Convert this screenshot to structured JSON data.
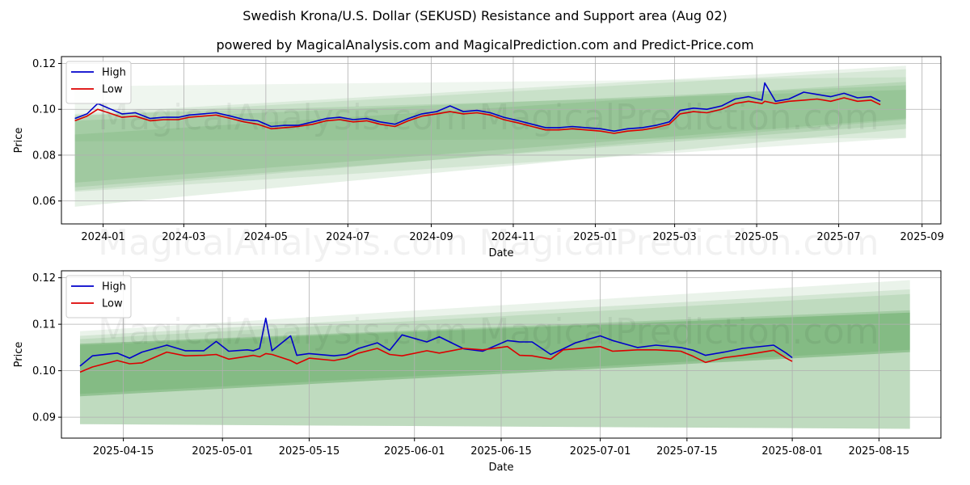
{
  "title": "Swedish Krona/U.S. Dollar (SEKUSD) Resistance and Support area (Aug 02)",
  "subtitle": "powered by MagicalAnalysis.com and MagicalPrediction.com and Predict-Price.com",
  "watermark": [
    "MagicalAnalysis.com",
    "MagicalPrediction.com"
  ],
  "colors": {
    "high": "#0000cc",
    "low": "#dd0000",
    "band": "#2e8b2e",
    "grid": "#b0b0b0"
  },
  "chart_data": [
    {
      "type": "line",
      "xlabel": "Date",
      "ylabel": "Price",
      "xlim": [
        "2023-12-01",
        "2025-09-15"
      ],
      "ylim": [
        0.05,
        0.123
      ],
      "xticks": [
        "2024-01",
        "2024-03",
        "2024-05",
        "2024-07",
        "2024-09",
        "2024-11",
        "2025-01",
        "2025-03",
        "2025-05",
        "2025-07",
        "2025-09"
      ],
      "xtick_dates": [
        "2024-01-01",
        "2024-03-01",
        "2024-05-01",
        "2024-07-01",
        "2024-09-01",
        "2024-11-01",
        "2025-01-01",
        "2025-03-01",
        "2025-05-01",
        "2025-07-01",
        "2025-09-01"
      ],
      "yticks": [
        0.06,
        0.08,
        0.1,
        0.12
      ],
      "ytick_labels": [
        "0.06",
        "0.08",
        "0.10",
        "0.12"
      ],
      "grid": true,
      "legend": "top-left",
      "legend_entries": [
        "High",
        "Low"
      ],
      "series": [
        {
          "name": "High",
          "x": [
            "2023-12-11",
            "2023-12-20",
            "2023-12-28",
            "2024-01-05",
            "2024-01-15",
            "2024-01-25",
            "2024-02-05",
            "2024-02-15",
            "2024-02-26",
            "2024-03-05",
            "2024-03-15",
            "2024-03-25",
            "2024-04-05",
            "2024-04-15",
            "2024-04-25",
            "2024-05-05",
            "2024-05-15",
            "2024-05-25",
            "2024-06-05",
            "2024-06-15",
            "2024-06-25",
            "2024-07-05",
            "2024-07-15",
            "2024-07-25",
            "2024-08-05",
            "2024-08-15",
            "2024-08-25",
            "2024-09-05",
            "2024-09-15",
            "2024-09-25",
            "2024-10-05",
            "2024-10-15",
            "2024-10-25",
            "2024-11-05",
            "2024-11-15",
            "2024-11-25",
            "2024-12-05",
            "2024-12-15",
            "2024-12-25",
            "2025-01-05",
            "2025-01-15",
            "2025-01-25",
            "2025-02-05",
            "2025-02-15",
            "2025-02-25",
            "2025-03-05",
            "2025-03-15",
            "2025-03-25",
            "2025-04-05",
            "2025-04-15",
            "2025-04-25",
            "2025-05-05",
            "2025-05-07",
            "2025-05-15",
            "2025-05-25",
            "2025-06-05",
            "2025-06-15",
            "2025-06-25",
            "2025-07-05",
            "2025-07-15",
            "2025-07-25",
            "2025-08-01"
          ],
          "values": [
            0.096,
            0.098,
            0.1025,
            0.1005,
            0.098,
            0.0985,
            0.096,
            0.0965,
            0.0965,
            0.0975,
            0.098,
            0.0985,
            0.097,
            0.0955,
            0.095,
            0.0925,
            0.093,
            0.093,
            0.0945,
            0.096,
            0.0965,
            0.0955,
            0.096,
            0.0945,
            0.0935,
            0.096,
            0.098,
            0.099,
            0.1015,
            0.099,
            0.0995,
            0.0985,
            0.0965,
            0.095,
            0.0935,
            0.092,
            0.092,
            0.0925,
            0.092,
            0.0915,
            0.0905,
            0.0915,
            0.092,
            0.093,
            0.0945,
            0.0995,
            0.1005,
            0.1,
            0.1015,
            0.1045,
            0.1055,
            0.104,
            0.1115,
            0.1035,
            0.1045,
            0.1075,
            0.1065,
            0.1055,
            0.107,
            0.105,
            0.1055,
            0.1035
          ]
        },
        {
          "name": "Low",
          "x": [
            "2023-12-11",
            "2023-12-20",
            "2023-12-28",
            "2024-01-05",
            "2024-01-15",
            "2024-01-25",
            "2024-02-05",
            "2024-02-15",
            "2024-02-26",
            "2024-03-05",
            "2024-03-15",
            "2024-03-25",
            "2024-04-05",
            "2024-04-15",
            "2024-04-25",
            "2024-05-05",
            "2024-05-15",
            "2024-05-25",
            "2024-06-05",
            "2024-06-15",
            "2024-06-25",
            "2024-07-05",
            "2024-07-15",
            "2024-07-25",
            "2024-08-05",
            "2024-08-15",
            "2024-08-25",
            "2024-09-05",
            "2024-09-15",
            "2024-09-25",
            "2024-10-05",
            "2024-10-15",
            "2024-10-25",
            "2024-11-05",
            "2024-11-15",
            "2024-11-25",
            "2024-12-05",
            "2024-12-15",
            "2024-12-25",
            "2025-01-05",
            "2025-01-15",
            "2025-01-25",
            "2025-02-05",
            "2025-02-15",
            "2025-02-25",
            "2025-03-05",
            "2025-03-15",
            "2025-03-25",
            "2025-04-05",
            "2025-04-15",
            "2025-04-25",
            "2025-05-05",
            "2025-05-07",
            "2025-05-15",
            "2025-05-25",
            "2025-06-05",
            "2025-06-15",
            "2025-06-25",
            "2025-07-05",
            "2025-07-15",
            "2025-07-25",
            "2025-08-01"
          ],
          "values": [
            0.095,
            0.097,
            0.1,
            0.0985,
            0.0965,
            0.097,
            0.095,
            0.0955,
            0.0955,
            0.0965,
            0.097,
            0.0975,
            0.096,
            0.0945,
            0.0935,
            0.0915,
            0.092,
            0.0925,
            0.0935,
            0.095,
            0.0955,
            0.0945,
            0.095,
            0.0935,
            0.0925,
            0.095,
            0.097,
            0.098,
            0.099,
            0.098,
            0.0985,
            0.0975,
            0.0955,
            0.094,
            0.0925,
            0.091,
            0.091,
            0.0915,
            0.091,
            0.0905,
            0.0895,
            0.0905,
            0.091,
            0.092,
            0.0935,
            0.098,
            0.099,
            0.0985,
            0.1,
            0.1025,
            0.1035,
            0.1025,
            0.1035,
            0.1025,
            0.1035,
            0.104,
            0.1045,
            0.1035,
            0.105,
            0.1035,
            0.104,
            0.102
          ]
        }
      ]
    },
    {
      "type": "line",
      "xlabel": "Date",
      "ylabel": "Price",
      "xlim": [
        "2025-04-05",
        "2025-08-25"
      ],
      "ylim": [
        0.0855,
        0.1215
      ],
      "xticks": [
        "2025-04-15",
        "2025-05-01",
        "2025-05-15",
        "2025-06-01",
        "2025-06-15",
        "2025-07-01",
        "2025-07-15",
        "2025-08-01",
        "2025-08-15"
      ],
      "xtick_dates": [
        "2025-04-15",
        "2025-05-01",
        "2025-05-15",
        "2025-06-01",
        "2025-06-15",
        "2025-07-01",
        "2025-07-15",
        "2025-08-01",
        "2025-08-15"
      ],
      "yticks": [
        0.09,
        0.1,
        0.11,
        0.12
      ],
      "ytick_labels": [
        "0.09",
        "0.10",
        "0.11",
        "0.12"
      ],
      "grid": true,
      "legend": "top-left",
      "legend_entries": [
        "High",
        "Low"
      ],
      "series": [
        {
          "name": "High",
          "x": [
            "2025-04-08",
            "2025-04-10",
            "2025-04-14",
            "2025-04-16",
            "2025-04-18",
            "2025-04-22",
            "2025-04-25",
            "2025-04-28",
            "2025-04-30",
            "2025-05-02",
            "2025-05-05",
            "2025-05-06",
            "2025-05-07",
            "2025-05-08",
            "2025-05-09",
            "2025-05-12",
            "2025-05-13",
            "2025-05-15",
            "2025-05-19",
            "2025-05-21",
            "2025-05-23",
            "2025-05-26",
            "2025-05-28",
            "2025-05-30",
            "2025-06-03",
            "2025-06-05",
            "2025-06-09",
            "2025-06-12",
            "2025-06-16",
            "2025-06-18",
            "2025-06-20",
            "2025-06-23",
            "2025-06-25",
            "2025-06-27",
            "2025-07-01",
            "2025-07-03",
            "2025-07-07",
            "2025-07-10",
            "2025-07-14",
            "2025-07-16",
            "2025-07-18",
            "2025-07-21",
            "2025-07-24",
            "2025-07-29",
            "2025-07-31",
            "2025-08-01"
          ],
          "values": [
            0.101,
            0.1032,
            0.1038,
            0.1027,
            0.104,
            0.1055,
            0.1043,
            0.1043,
            0.1063,
            0.1042,
            0.1045,
            0.1043,
            0.1048,
            0.1113,
            0.1043,
            0.1075,
            0.1033,
            0.1037,
            0.1032,
            0.1035,
            0.1048,
            0.106,
            0.1044,
            0.1077,
            0.1062,
            0.1073,
            0.1047,
            0.1042,
            0.1065,
            0.1062,
            0.1062,
            0.1035,
            0.1047,
            0.106,
            0.1075,
            0.1065,
            0.105,
            0.1055,
            0.105,
            0.1044,
            0.1033,
            0.104,
            0.1048,
            0.1055,
            0.1038,
            0.1028
          ]
        },
        {
          "name": "Low",
          "x": [
            "2025-04-08",
            "2025-04-10",
            "2025-04-14",
            "2025-04-16",
            "2025-04-18",
            "2025-04-22",
            "2025-04-25",
            "2025-04-28",
            "2025-04-30",
            "2025-05-02",
            "2025-05-05",
            "2025-05-06",
            "2025-05-07",
            "2025-05-08",
            "2025-05-09",
            "2025-05-12",
            "2025-05-13",
            "2025-05-15",
            "2025-05-19",
            "2025-05-21",
            "2025-05-23",
            "2025-05-26",
            "2025-05-28",
            "2025-05-30",
            "2025-06-03",
            "2025-06-05",
            "2025-06-09",
            "2025-06-12",
            "2025-06-16",
            "2025-06-18",
            "2025-06-20",
            "2025-06-23",
            "2025-06-25",
            "2025-06-27",
            "2025-07-01",
            "2025-07-03",
            "2025-07-07",
            "2025-07-10",
            "2025-07-14",
            "2025-07-16",
            "2025-07-18",
            "2025-07-21",
            "2025-07-24",
            "2025-07-29",
            "2025-07-31",
            "2025-08-01"
          ],
          "values": [
            0.0997,
            0.1008,
            0.1022,
            0.1015,
            0.1017,
            0.104,
            0.1032,
            0.1033,
            0.1035,
            0.1025,
            0.1031,
            0.1033,
            0.103,
            0.1037,
            0.1035,
            0.1022,
            0.1015,
            0.1027,
            0.1022,
            0.1027,
            0.1038,
            0.1048,
            0.1035,
            0.1032,
            0.1043,
            0.1038,
            0.1048,
            0.1045,
            0.1052,
            0.1033,
            0.1032,
            0.1025,
            0.1045,
            0.1047,
            0.1052,
            0.1042,
            0.1045,
            0.1045,
            0.1042,
            0.1031,
            0.1018,
            0.1028,
            0.1033,
            0.1044,
            0.1027,
            0.102
          ]
        }
      ]
    }
  ]
}
